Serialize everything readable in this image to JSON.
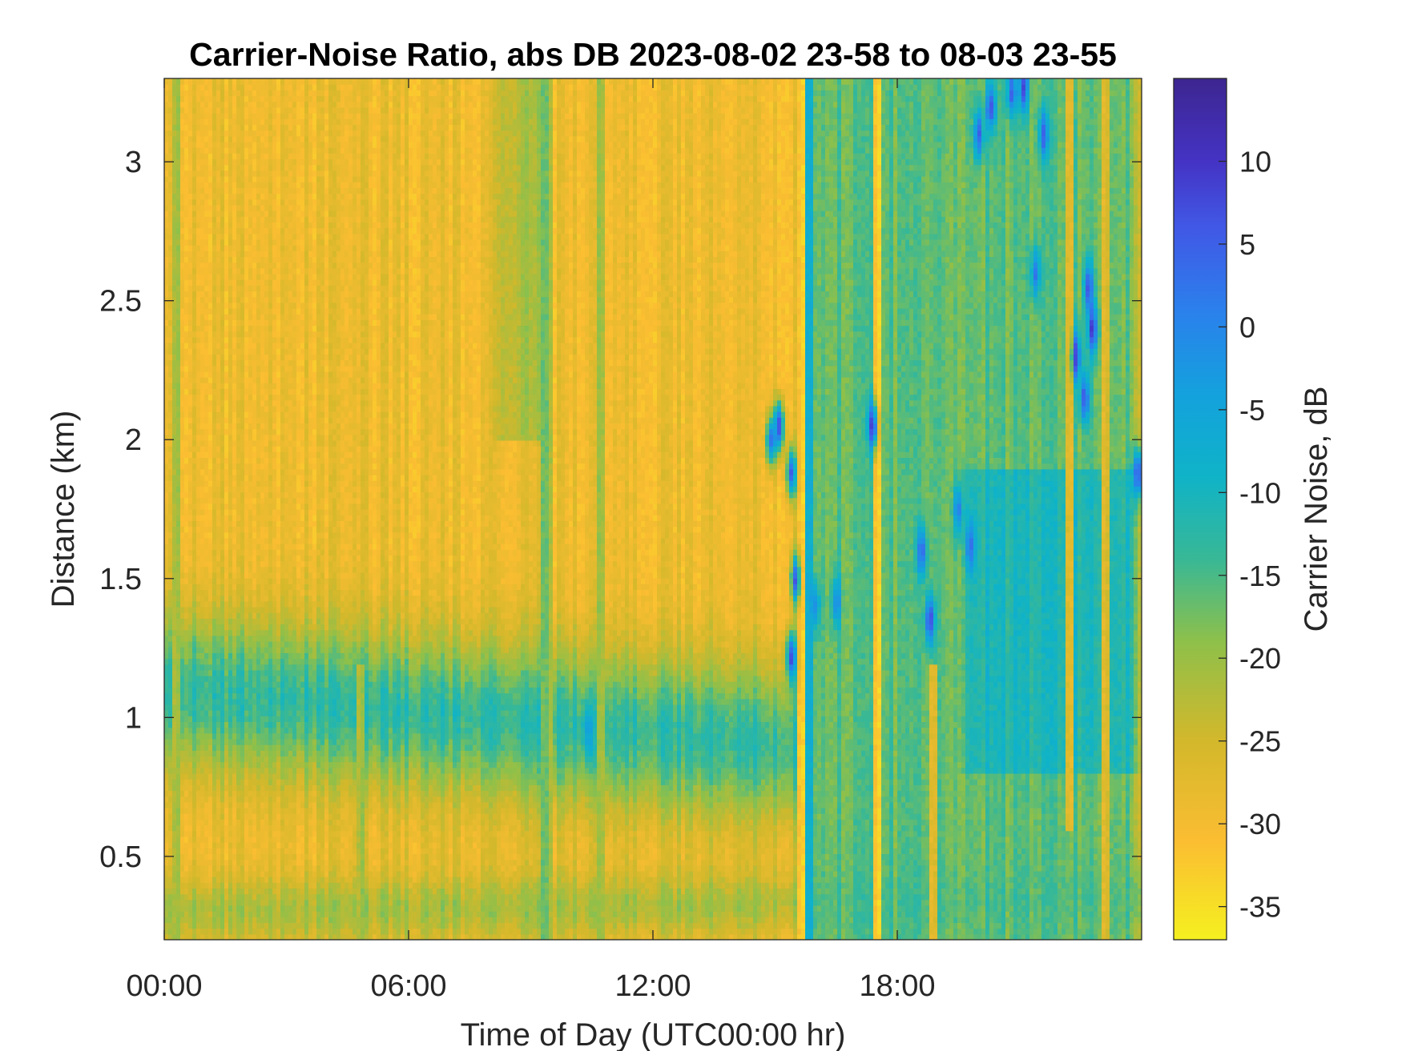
{
  "chart_data": {
    "type": "heatmap",
    "title": "Carrier-Noise Ratio, abs DB 2023-08-02 23-58 to 08-03 23-55",
    "xlabel": "Time of Day (UTC00:00 hr)",
    "ylabel": "Distance (km)",
    "colorbar_label": "Carrier Noise, dB",
    "xlim_hours": [
      0,
      24
    ],
    "ylim_km": [
      0.2,
      3.3
    ],
    "clim_db": [
      -37,
      15
    ],
    "x_ticks": [
      {
        "value": 0,
        "label": "00:00"
      },
      {
        "value": 6,
        "label": "06:00"
      },
      {
        "value": 12,
        "label": "12:00"
      },
      {
        "value": 18,
        "label": "18:00"
      }
    ],
    "y_ticks": [
      {
        "value": 0.5,
        "label": "0.5"
      },
      {
        "value": 1,
        "label": "1"
      },
      {
        "value": 1.5,
        "label": "1.5"
      },
      {
        "value": 2,
        "label": "2"
      },
      {
        "value": 2.5,
        "label": "2.5"
      },
      {
        "value": 3,
        "label": "3"
      }
    ],
    "colorbar_ticks": [
      {
        "value": 10,
        "label": "10"
      },
      {
        "value": 5,
        "label": "5"
      },
      {
        "value": 0,
        "label": "0"
      },
      {
        "value": -5,
        "label": "-5"
      },
      {
        "value": -10,
        "label": "-10"
      },
      {
        "value": -15,
        "label": "-15"
      },
      {
        "value": -20,
        "label": "-20"
      },
      {
        "value": -25,
        "label": "-25"
      },
      {
        "value": -30,
        "label": "-30"
      },
      {
        "value": -35,
        "label": "-35"
      }
    ],
    "colormap": "parula (reversed: low = yellow, high = dark blue)",
    "colormap_stops": [
      {
        "db": -37,
        "color": "#f5f020"
      },
      {
        "db": -31,
        "color": "#fbbd32"
      },
      {
        "db": -25,
        "color": "#d3b82b"
      },
      {
        "db": -19,
        "color": "#8ec04a"
      },
      {
        "db": -14,
        "color": "#38b896"
      },
      {
        "db": -9,
        "color": "#0fb3c8"
      },
      {
        "db": -4,
        "color": "#14a1dd"
      },
      {
        "db": 1,
        "color": "#2b80ec"
      },
      {
        "db": 6,
        "color": "#4158e6"
      },
      {
        "db": 10,
        "color": "#4433c4"
      },
      {
        "db": 15,
        "color": "#3d2690"
      }
    ],
    "summary": "CNR in dB versus time of day (0–24 h) and range (0.2–3.3 km). Low values (about -28 to -33 dB, yellow/orange) dominate aloft, especially before 15:00. A band of higher CNR (about -10 to -15 dB, cyan/green) sits near 0.7–1.3 km through the day and deepens after ~15:30 to fill most of the column up to ~2.2 km and beyond in patches. Isolated strong returns (0 to +12 dB, blue) occur near 15:00–15:45 at 1.2–2.1 km, 17:30 near 2.0 km, 18:30–19:00 near 1.3–1.7 km, 20:00–21:30 near 2.6–3.3 km, and 22:30–23:00 near 2.1–2.6 km.",
    "background_db": -29,
    "features": [
      {
        "name": "low-level moist band",
        "shape": "band",
        "x0": 0,
        "x1": 15.5,
        "y_center_start": 1.1,
        "y_center_end": 0.9,
        "half_width_km": 0.28,
        "value_db": -13
      },
      {
        "name": "surface layer",
        "shape": "band",
        "x0": 0,
        "x1": 24,
        "y_center_start": 0.3,
        "y_center_end": 0.35,
        "half_width_km": 0.12,
        "value_db": -21
      },
      {
        "name": "afternoon mixed layer",
        "shape": "region",
        "x0": 15.7,
        "x1": 24,
        "y0": 0.2,
        "y1": 3.3,
        "value_db": -14
      },
      {
        "name": "morning plume",
        "shape": "region",
        "x0": 8.0,
        "x1": 9.5,
        "y0": 2.0,
        "y1": 3.3,
        "value_db": -21
      },
      {
        "name": "late evening band",
        "shape": "region",
        "x0": 19.5,
        "x1": 24,
        "y0": 0.8,
        "y1": 1.9,
        "value_db": -10
      }
    ],
    "hotspots": [
      {
        "x_hour": 14.9,
        "y_km": 2.0,
        "value_db": 4
      },
      {
        "x_hour": 15.1,
        "y_km": 2.05,
        "value_db": 9
      },
      {
        "x_hour": 15.4,
        "y_km": 1.88,
        "value_db": 6
      },
      {
        "x_hour": 15.5,
        "y_km": 1.5,
        "value_db": 3
      },
      {
        "x_hour": 15.4,
        "y_km": 1.22,
        "value_db": 9
      },
      {
        "x_hour": 17.4,
        "y_km": 2.05,
        "value_db": 8
      },
      {
        "x_hour": 16.0,
        "y_km": 1.4,
        "value_db": -2
      },
      {
        "x_hour": 16.5,
        "y_km": 1.42,
        "value_db": 0
      },
      {
        "x_hour": 18.6,
        "y_km": 1.6,
        "value_db": 4
      },
      {
        "x_hour": 18.8,
        "y_km": 1.35,
        "value_db": 8
      },
      {
        "x_hour": 19.5,
        "y_km": 1.75,
        "value_db": 2
      },
      {
        "x_hour": 19.8,
        "y_km": 1.62,
        "value_db": 3
      },
      {
        "x_hour": 20.0,
        "y_km": 3.1,
        "value_db": 5
      },
      {
        "x_hour": 20.3,
        "y_km": 3.2,
        "value_db": 6
      },
      {
        "x_hour": 20.8,
        "y_km": 3.25,
        "value_db": 5
      },
      {
        "x_hour": 21.1,
        "y_km": 3.27,
        "value_db": 7
      },
      {
        "x_hour": 21.6,
        "y_km": 3.1,
        "value_db": 4
      },
      {
        "x_hour": 21.4,
        "y_km": 2.6,
        "value_db": 3
      },
      {
        "x_hour": 22.4,
        "y_km": 2.3,
        "value_db": 8
      },
      {
        "x_hour": 22.6,
        "y_km": 2.15,
        "value_db": 6
      },
      {
        "x_hour": 22.8,
        "y_km": 2.4,
        "value_db": 9
      },
      {
        "x_hour": 22.7,
        "y_km": 2.55,
        "value_db": 6
      },
      {
        "x_hour": 23.9,
        "y_km": 1.88,
        "value_db": 6
      },
      {
        "x_hour": 10.4,
        "y_km": 0.95,
        "value_db": -4
      }
    ],
    "columns": [
      {
        "x_hour": 0.3,
        "value_db": -21,
        "y0": 0.2,
        "y1": 3.3
      },
      {
        "x_hour": 4.8,
        "value_db": -22,
        "y0": 0.2,
        "y1": 1.2
      },
      {
        "x_hour": 9.4,
        "value_db": -19,
        "y0": 0.2,
        "y1": 3.3
      },
      {
        "x_hour": 10.7,
        "value_db": -20,
        "y0": 0.2,
        "y1": 3.3
      },
      {
        "x_hour": 15.65,
        "value_db": -33,
        "y0": 0.2,
        "y1": 3.3
      },
      {
        "x_hour": 15.8,
        "value_db": -10,
        "y0": 0.2,
        "y1": 3.3
      },
      {
        "x_hour": 17.5,
        "value_db": -32,
        "y0": 0.2,
        "y1": 3.3
      },
      {
        "x_hour": 18.9,
        "value_db": -27,
        "y0": 0.2,
        "y1": 1.2
      },
      {
        "x_hour": 22.2,
        "value_db": -26,
        "y0": 0.6,
        "y1": 3.3
      },
      {
        "x_hour": 23.1,
        "value_db": -26,
        "y0": 0.2,
        "y1": 3.3
      }
    ]
  }
}
